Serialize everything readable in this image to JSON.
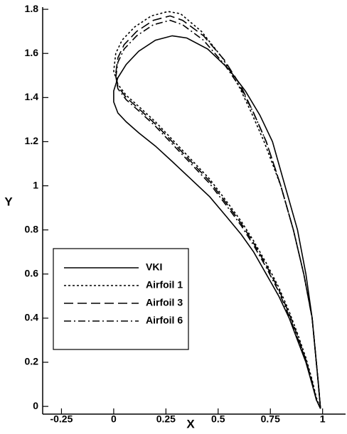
{
  "chart_data": {
    "type": "line",
    "x_label": "X",
    "y_label": "Y",
    "xlim": [
      -0.34,
      1.11
    ],
    "ylim": [
      -0.035,
      1.81
    ],
    "xticks": [
      -0.25,
      0,
      0.25,
      0.5,
      0.75,
      1
    ],
    "yticks": [
      0,
      0.2,
      0.4,
      0.6,
      0.8,
      1,
      1.2,
      1.4,
      1.6,
      1.8
    ],
    "legend": "lower left",
    "series": [
      {
        "name": "VKI",
        "color": "#000000",
        "dash": "solid",
        "x": [
          0.99,
          0.98,
          0.95,
          0.92,
          0.88,
          0.82,
          0.76,
          0.7,
          0.63,
          0.55,
          0.45,
          0.35,
          0.28,
          0.2,
          0.12,
          0.06,
          0.02,
          0.0,
          0.0,
          0.02,
          0.06,
          0.12,
          0.2,
          0.28,
          0.37,
          0.46,
          0.54,
          0.61,
          0.67,
          0.73,
          0.79,
          0.84,
          0.88,
          0.92,
          0.95,
          0.97,
          0.99
        ],
        "values": [
          -0.01,
          0.1,
          0.4,
          0.6,
          0.8,
          1.0,
          1.2,
          1.32,
          1.43,
          1.53,
          1.62,
          1.67,
          1.68,
          1.66,
          1.61,
          1.55,
          1.49,
          1.43,
          1.38,
          1.33,
          1.29,
          1.24,
          1.18,
          1.11,
          1.03,
          0.95,
          0.86,
          0.78,
          0.7,
          0.6,
          0.5,
          0.4,
          0.3,
          0.2,
          0.1,
          0.03,
          -0.01
        ]
      },
      {
        "name": "Airfoil 1",
        "color": "#000000",
        "dash": "dotted",
        "x": [
          0.99,
          0.98,
          0.95,
          0.91,
          0.86,
          0.8,
          0.72,
          0.66,
          0.6,
          0.52,
          0.42,
          0.32,
          0.26,
          0.18,
          0.1,
          0.04,
          0.01,
          0.0,
          0.02,
          0.06,
          0.12,
          0.2,
          0.28,
          0.37,
          0.46,
          0.54,
          0.61,
          0.67,
          0.73,
          0.79,
          0.84,
          0.88,
          0.92,
          0.95,
          0.97,
          0.99
        ],
        "values": [
          -0.01,
          0.1,
          0.4,
          0.6,
          0.8,
          1.0,
          1.2,
          1.33,
          1.45,
          1.58,
          1.7,
          1.78,
          1.79,
          1.77,
          1.72,
          1.66,
          1.6,
          1.52,
          1.46,
          1.41,
          1.36,
          1.29,
          1.21,
          1.12,
          1.03,
          0.93,
          0.84,
          0.75,
          0.65,
          0.54,
          0.43,
          0.33,
          0.22,
          0.12,
          0.04,
          -0.01
        ]
      },
      {
        "name": "Airfoil 3",
        "color": "#000000",
        "dash": "longdash",
        "x": [
          0.99,
          0.98,
          0.95,
          0.91,
          0.86,
          0.8,
          0.73,
          0.67,
          0.61,
          0.53,
          0.43,
          0.33,
          0.27,
          0.19,
          0.11,
          0.05,
          0.02,
          0.01,
          0.02,
          0.06,
          0.12,
          0.2,
          0.28,
          0.37,
          0.46,
          0.54,
          0.61,
          0.67,
          0.73,
          0.79,
          0.84,
          0.88,
          0.92,
          0.95,
          0.97,
          0.99
        ],
        "values": [
          -0.01,
          0.1,
          0.4,
          0.6,
          0.8,
          1.0,
          1.2,
          1.33,
          1.45,
          1.57,
          1.68,
          1.75,
          1.77,
          1.75,
          1.7,
          1.64,
          1.58,
          1.51,
          1.45,
          1.4,
          1.35,
          1.28,
          1.2,
          1.11,
          1.02,
          0.92,
          0.83,
          0.74,
          0.64,
          0.53,
          0.42,
          0.32,
          0.21,
          0.11,
          0.03,
          -0.01
        ]
      },
      {
        "name": "Airfoil 6",
        "color": "#000000",
        "dash": "dashdot",
        "x": [
          0.99,
          0.98,
          0.95,
          0.91,
          0.86,
          0.8,
          0.73,
          0.67,
          0.61,
          0.53,
          0.43,
          0.33,
          0.27,
          0.19,
          0.11,
          0.05,
          0.02,
          0.01,
          0.02,
          0.06,
          0.12,
          0.2,
          0.28,
          0.37,
          0.46,
          0.54,
          0.61,
          0.67,
          0.73,
          0.79,
          0.84,
          0.88,
          0.92,
          0.95,
          0.97,
          0.99
        ],
        "values": [
          -0.01,
          0.1,
          0.4,
          0.6,
          0.8,
          1.0,
          1.2,
          1.33,
          1.44,
          1.55,
          1.66,
          1.73,
          1.75,
          1.73,
          1.68,
          1.62,
          1.56,
          1.49,
          1.44,
          1.39,
          1.34,
          1.27,
          1.19,
          1.1,
          1.01,
          0.91,
          0.82,
          0.73,
          0.63,
          0.52,
          0.41,
          0.31,
          0.21,
          0.11,
          0.03,
          -0.01
        ]
      }
    ]
  }
}
